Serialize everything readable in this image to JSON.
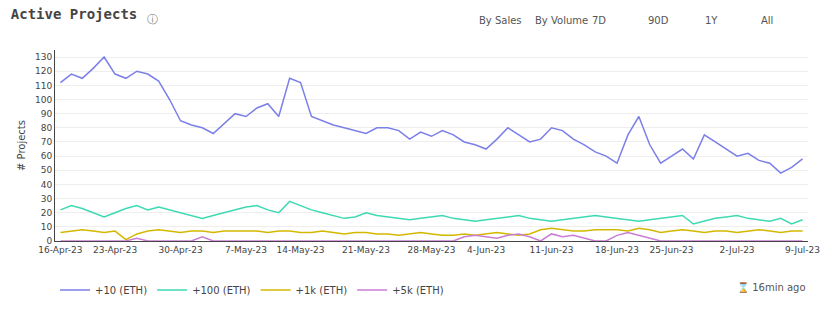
{
  "chart_data": {
    "type": "line",
    "title": "Active Projects",
    "ylabel": "# Projects",
    "annotations": [
      "ⓘ",
      "By Sales",
      "By Volume",
      "7D",
      "90D",
      "1Y",
      "All",
      "⌛ 16min ago"
    ],
    "categories": [
      "16-Apr-23",
      null,
      null,
      null,
      null,
      "23-Apr-23",
      null,
      null,
      null,
      null,
      null,
      "30-Apr-23",
      null,
      null,
      null,
      null,
      null,
      "7-May-23",
      null,
      null,
      null,
      null,
      "14-May-23",
      null,
      null,
      null,
      null,
      null,
      "21-May-23",
      null,
      null,
      null,
      null,
      null,
      "28-May-23",
      null,
      null,
      null,
      null,
      "4-Jun-23",
      null,
      null,
      null,
      null,
      null,
      "11-Jun-23",
      null,
      null,
      null,
      null,
      null,
      "18-Jun-23",
      null,
      null,
      null,
      null,
      "25-Jun-23",
      null,
      null,
      null,
      null,
      null,
      "2-Jul-23",
      null,
      null,
      null,
      null,
      null,
      "9-Jul-23"
    ],
    "series": [
      {
        "name": "+10 (ETH)",
        "color": "#7b7fe8",
        "values": [
          112,
          118,
          115,
          122,
          130,
          118,
          115,
          120,
          118,
          113,
          100,
          85,
          82,
          80,
          76,
          83,
          90,
          88,
          94,
          97,
          88,
          115,
          112,
          88,
          85,
          82,
          80,
          78,
          76,
          80,
          80,
          78,
          72,
          77,
          74,
          78,
          75,
          70,
          68,
          65,
          72,
          80,
          75,
          70,
          72,
          80,
          78,
          72,
          68,
          63,
          60,
          55,
          75,
          88,
          68,
          55,
          60,
          65,
          58,
          75,
          70,
          65,
          60,
          62,
          57,
          55,
          48,
          52,
          58
        ]
      },
      {
        "name": "+100 (ETH)",
        "color": "#3dd9b3",
        "values": [
          22,
          25,
          23,
          20,
          17,
          20,
          23,
          25,
          22,
          24,
          22,
          20,
          18,
          16,
          18,
          20,
          22,
          24,
          25,
          22,
          20,
          28,
          25,
          22,
          20,
          18,
          16,
          17,
          20,
          18,
          17,
          16,
          15,
          16,
          17,
          18,
          16,
          15,
          14,
          15,
          16,
          17,
          18,
          16,
          15,
          14,
          15,
          16,
          17,
          18,
          17,
          16,
          15,
          14,
          15,
          16,
          17,
          18,
          12,
          14,
          16,
          17,
          18,
          16,
          15,
          14,
          16,
          12,
          15
        ]
      },
      {
        "name": "+1k (ETH)",
        "color": "#d4b800",
        "values": [
          6,
          7,
          8,
          7,
          6,
          7,
          1,
          5,
          7,
          8,
          7,
          6,
          7,
          7,
          6,
          7,
          7,
          7,
          7,
          6,
          7,
          7,
          6,
          6,
          7,
          6,
          5,
          6,
          6,
          5,
          5,
          4,
          5,
          6,
          5,
          4,
          4,
          5,
          4,
          5,
          6,
          5,
          4,
          5,
          8,
          9,
          8,
          7,
          7,
          8,
          8,
          8,
          7,
          9,
          8,
          6,
          7,
          8,
          7,
          6,
          7,
          7,
          6,
          7,
          8,
          7,
          6,
          7,
          7
        ]
      },
      {
        "name": "+5k (ETH)",
        "color": "#c87dd4",
        "values": [
          0,
          0,
          0,
          0,
          0,
          0,
          0,
          2,
          0,
          0,
          0,
          0,
          0,
          3,
          0,
          0,
          0,
          0,
          0,
          0,
          0,
          0,
          0,
          0,
          0,
          0,
          0,
          0,
          0,
          0,
          0,
          0,
          0,
          0,
          0,
          0,
          0,
          3,
          4,
          3,
          2,
          4,
          5,
          3,
          0,
          5,
          3,
          4,
          2,
          0,
          0,
          4,
          6,
          4,
          2,
          0,
          0,
          0,
          0,
          0,
          0,
          0,
          0,
          0,
          0,
          0,
          0,
          0,
          0
        ]
      }
    ],
    "ylim": [
      0,
      135
    ],
    "yticks": [
      0,
      10,
      20,
      30,
      40,
      50,
      60,
      70,
      80,
      90,
      100,
      110,
      120,
      130
    ],
    "grid": true,
    "legend": "lower left"
  }
}
